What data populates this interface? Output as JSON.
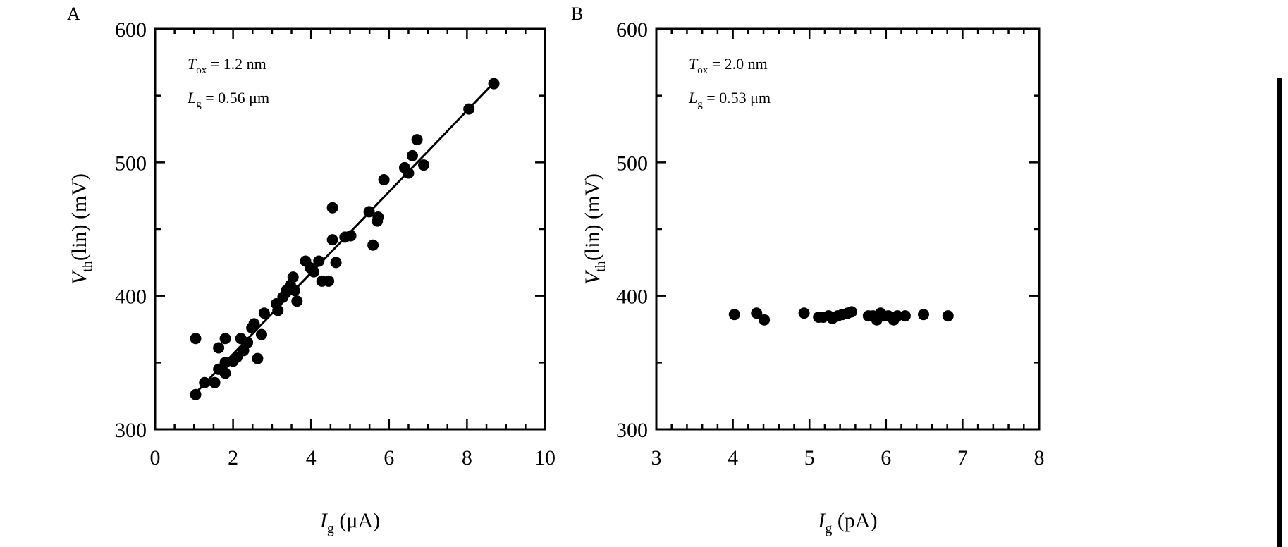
{
  "chart_data": [
    {
      "panel": "A",
      "type": "scatter",
      "title": "",
      "xlabel": {
        "symbol": "I",
        "sub": "g",
        "unit": " (μA)"
      },
      "ylabel": {
        "symbol": "V",
        "sub": "th",
        "unit": "(lin) (mV)"
      },
      "xlim": [
        0,
        10
      ],
      "ylim": [
        300,
        600
      ],
      "xticks": [
        0,
        2,
        4,
        6,
        8,
        10
      ],
      "yticks": [
        300,
        400,
        500,
        600
      ],
      "x_minor_step": 0.5,
      "y_minor_step": 50,
      "grid": false,
      "annotations": [
        {
          "symbol": "T",
          "sub": "ox",
          "text": " = 1.2 nm"
        },
        {
          "symbol": "L",
          "sub": "g",
          "text": " = 0.56 μm"
        }
      ],
      "fit_line": {
        "x": [
          1.0,
          8.7
        ],
        "y": [
          326,
          560
        ]
      },
      "points": [
        [
          1.04,
          326
        ],
        [
          1.04,
          368
        ],
        [
          1.27,
          335
        ],
        [
          1.53,
          335
        ],
        [
          1.63,
          345
        ],
        [
          1.63,
          361
        ],
        [
          1.8,
          350
        ],
        [
          1.8,
          342
        ],
        [
          1.8,
          368
        ],
        [
          2.0,
          351
        ],
        [
          2.1,
          354
        ],
        [
          2.2,
          368
        ],
        [
          2.27,
          359
        ],
        [
          2.37,
          365
        ],
        [
          2.48,
          376
        ],
        [
          2.54,
          379
        ],
        [
          2.63,
          353
        ],
        [
          2.73,
          371
        ],
        [
          2.8,
          387
        ],
        [
          3.11,
          394
        ],
        [
          3.15,
          389
        ],
        [
          3.28,
          399
        ],
        [
          3.37,
          404
        ],
        [
          3.47,
          408
        ],
        [
          3.54,
          414
        ],
        [
          3.58,
          404
        ],
        [
          3.64,
          396
        ],
        [
          3.86,
          426
        ],
        [
          3.98,
          421
        ],
        [
          4.07,
          418
        ],
        [
          4.2,
          426
        ],
        [
          4.28,
          411
        ],
        [
          4.45,
          411
        ],
        [
          4.55,
          442
        ],
        [
          4.55,
          466
        ],
        [
          4.64,
          425
        ],
        [
          4.87,
          444
        ],
        [
          5.02,
          445
        ],
        [
          5.49,
          463
        ],
        [
          5.59,
          438
        ],
        [
          5.72,
          459
        ],
        [
          5.7,
          456
        ],
        [
          5.87,
          487
        ],
        [
          6.4,
          496
        ],
        [
          6.5,
          492
        ],
        [
          6.6,
          505
        ],
        [
          6.72,
          517
        ],
        [
          6.89,
          498
        ],
        [
          8.05,
          540
        ],
        [
          8.69,
          559
        ]
      ]
    },
    {
      "panel": "B",
      "type": "scatter",
      "title": "",
      "xlabel": {
        "symbol": "I",
        "sub": "g",
        "unit": " (pA)"
      },
      "ylabel": {
        "symbol": "V",
        "sub": "th",
        "unit": "(lin) (mV)"
      },
      "xlim": [
        3,
        8
      ],
      "ylim": [
        300,
        600
      ],
      "xticks": [
        3,
        4,
        5,
        6,
        7,
        8
      ],
      "yticks": [
        300,
        400,
        500,
        600
      ],
      "x_minor_step": 0.2,
      "y_minor_step": 50,
      "grid": false,
      "annotations": [
        {
          "symbol": "T",
          "sub": "ox",
          "text": " = 2.0 nm"
        },
        {
          "symbol": "L",
          "sub": "g",
          "text": " = 0.53 μm"
        }
      ],
      "points": [
        [
          4.02,
          386
        ],
        [
          4.31,
          387
        ],
        [
          4.41,
          382
        ],
        [
          4.93,
          387
        ],
        [
          5.12,
          384
        ],
        [
          5.18,
          384
        ],
        [
          5.25,
          385
        ],
        [
          5.3,
          383
        ],
        [
          5.37,
          385
        ],
        [
          5.43,
          386
        ],
        [
          5.5,
          387
        ],
        [
          5.55,
          388
        ],
        [
          5.77,
          385
        ],
        [
          5.83,
          385
        ],
        [
          5.88,
          382
        ],
        [
          5.93,
          387
        ],
        [
          5.97,
          385
        ],
        [
          6.03,
          385
        ],
        [
          6.1,
          382
        ],
        [
          6.15,
          385
        ],
        [
          6.25,
          385
        ],
        [
          6.49,
          386
        ],
        [
          6.81,
          385
        ]
      ]
    }
  ]
}
